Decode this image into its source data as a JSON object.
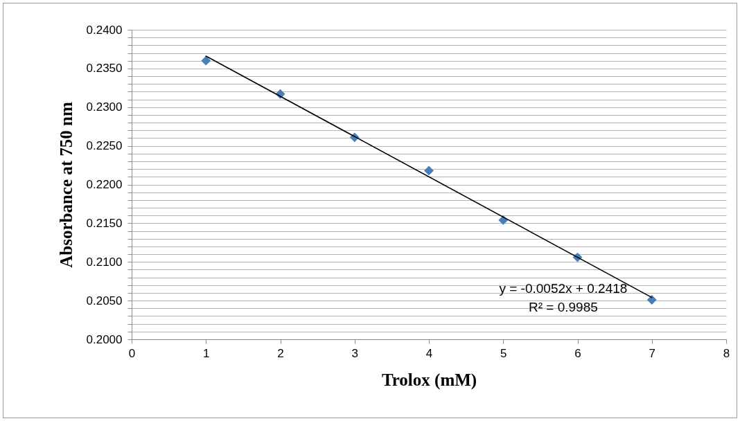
{
  "chart_data": {
    "type": "scatter",
    "xlabel": "Trolox (mM)",
    "ylabel": "Absorbance at 750 nm",
    "x": [
      1,
      2,
      3,
      4,
      5,
      6,
      7
    ],
    "series": [
      {
        "color": "#4a7ebb",
        "marker": "diamond",
        "values": [
          0.236,
          0.2317,
          0.2261,
          0.2218,
          0.2154,
          0.2106,
          0.2051
        ]
      },
      {
        "type": "line",
        "color": "#000000",
        "marker": "none",
        "line_style": "solid",
        "x": [
          1,
          7
        ],
        "values": [
          0.2366,
          0.2054
        ]
      }
    ],
    "annotations": [
      "y = -0.0052x + 0.2418",
      "R² = 0.9985"
    ],
    "xlim": [
      0,
      8
    ],
    "xticks": [
      0,
      1,
      2,
      3,
      4,
      5,
      6,
      7,
      8
    ],
    "ylim": [
      0.2,
      0.24
    ],
    "yticks": [
      {
        "value": 0.2,
        "label": "0.2000"
      },
      {
        "value": 0.201,
        "label": null
      },
      {
        "value": 0.202,
        "label": null
      },
      {
        "value": 0.203,
        "label": null
      },
      {
        "value": 0.204,
        "label": null
      },
      {
        "value": 0.205,
        "label": "0.2050"
      },
      {
        "value": 0.206,
        "label": null
      },
      {
        "value": 0.207,
        "label": null
      },
      {
        "value": 0.208,
        "label": null
      },
      {
        "value": 0.209,
        "label": null
      },
      {
        "value": 0.21,
        "label": "0.2100"
      },
      {
        "value": 0.211,
        "label": null
      },
      {
        "value": 0.212,
        "label": null
      },
      {
        "value": 0.213,
        "label": null
      },
      {
        "value": 0.214,
        "label": null
      },
      {
        "value": 0.215,
        "label": "0.2150"
      },
      {
        "value": 0.216,
        "label": null
      },
      {
        "value": 0.217,
        "label": null
      },
      {
        "value": 0.218,
        "label": null
      },
      {
        "value": 0.219,
        "label": null
      },
      {
        "value": 0.22,
        "label": "0.2200"
      },
      {
        "value": 0.221,
        "label": null
      },
      {
        "value": 0.222,
        "label": null
      },
      {
        "value": 0.223,
        "label": null
      },
      {
        "value": 0.224,
        "label": null
      },
      {
        "value": 0.225,
        "label": "0.2250"
      },
      {
        "value": 0.226,
        "label": null
      },
      {
        "value": 0.227,
        "label": null
      },
      {
        "value": 0.228,
        "label": null
      },
      {
        "value": 0.229,
        "label": null
      },
      {
        "value": 0.23,
        "label": "0.2300"
      },
      {
        "value": 0.231,
        "label": null
      },
      {
        "value": 0.232,
        "label": null
      },
      {
        "value": 0.233,
        "label": null
      },
      {
        "value": 0.234,
        "label": null
      },
      {
        "value": 0.235,
        "label": "0.2350"
      },
      {
        "value": 0.236,
        "label": null
      },
      {
        "value": 0.237,
        "label": null
      },
      {
        "value": 0.238,
        "label": null
      },
      {
        "value": 0.239,
        "label": null
      },
      {
        "value": 0.24,
        "label": "0.2400"
      }
    ],
    "grid": "y",
    "legend": false
  }
}
